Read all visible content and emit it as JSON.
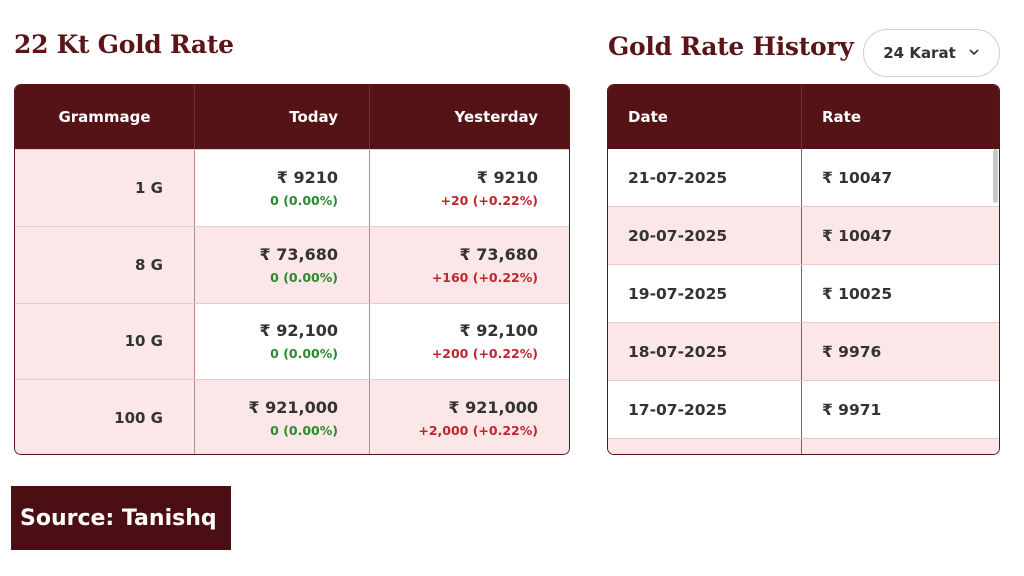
{
  "left": {
    "title": "22 Kt Gold Rate",
    "columns": [
      "Grammage",
      "Today",
      "Yesterday"
    ],
    "rows": [
      {
        "grammage": "1 G",
        "today": "₹ 9210",
        "today_change": "0 (0.00%)",
        "yesterday": "₹ 9210",
        "yesterday_change": "+20 (+0.22%)"
      },
      {
        "grammage": "8 G",
        "today": "₹ 73,680",
        "today_change": "0 (0.00%)",
        "yesterday": "₹ 73,680",
        "yesterday_change": "+160 (+0.22%)"
      },
      {
        "grammage": "10 G",
        "today": "₹ 92,100",
        "today_change": "0 (0.00%)",
        "yesterday": "₹ 92,100",
        "yesterday_change": "+200 (+0.22%)"
      },
      {
        "grammage": "100 G",
        "today": "₹ 921,000",
        "today_change": "0 (0.00%)",
        "yesterday": "₹ 921,000",
        "yesterday_change": "+2,000 (+0.22%)"
      }
    ]
  },
  "right": {
    "title": "Gold Rate History",
    "karat_select": {
      "value": "24 Karat",
      "icon": "chevron-down-icon"
    },
    "columns": [
      "Date",
      "Rate"
    ],
    "rows": [
      {
        "date": "21-07-2025",
        "rate": "₹ 10047"
      },
      {
        "date": "20-07-2025",
        "rate": "₹ 10047"
      },
      {
        "date": "19-07-2025",
        "rate": "₹ 10025"
      },
      {
        "date": "18-07-2025",
        "rate": "₹ 9976"
      },
      {
        "date": "17-07-2025",
        "rate": "₹ 9971"
      },
      {
        "date": "",
        "rate": ""
      }
    ]
  },
  "source_label": "Source: Tanishq",
  "colors": {
    "brand": "#551217",
    "title": "#5a1518",
    "row_pink": "#fbe6e8",
    "positive": "#c0272d",
    "neutral": "#2c8a2c"
  }
}
